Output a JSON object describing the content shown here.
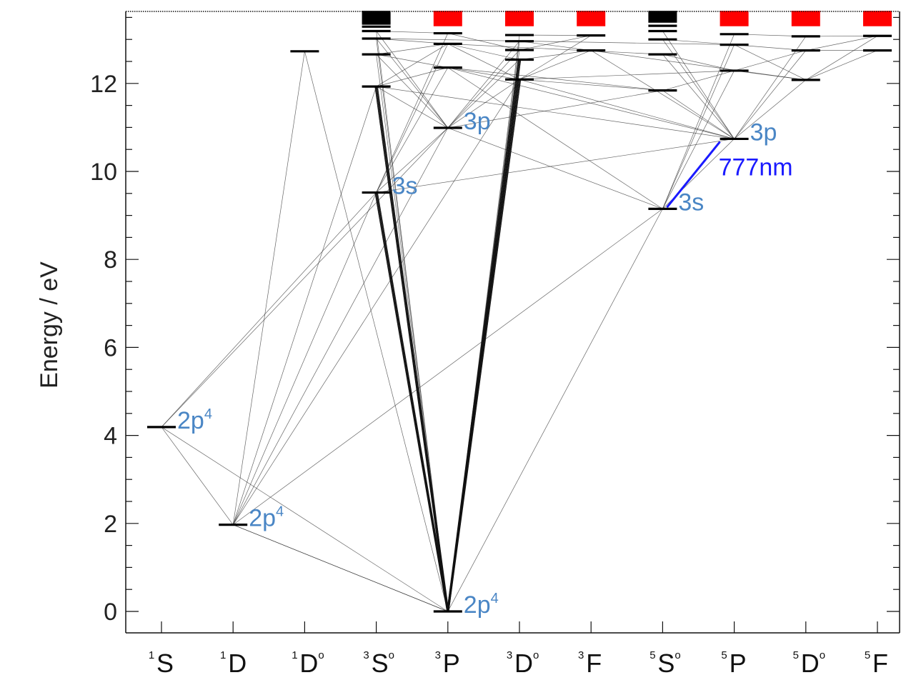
{
  "chart_data": {
    "type": "diagram",
    "subtype": "Grotrian energy-level diagram",
    "ylabel": "Energy / eV",
    "yticks": [
      0,
      2,
      4,
      6,
      8,
      10,
      12
    ],
    "ylim": [
      -0.5,
      13.7
    ],
    "columns": [
      {
        "base": "S",
        "mult": "1",
        "odd": false
      },
      {
        "base": "D",
        "mult": "1",
        "odd": false
      },
      {
        "base": "D",
        "mult": "1",
        "odd": true
      },
      {
        "base": "S",
        "mult": "3",
        "odd": true
      },
      {
        "base": "P",
        "mult": "3",
        "odd": false
      },
      {
        "base": "D",
        "mult": "3",
        "odd": true
      },
      {
        "base": "F",
        "mult": "3",
        "odd": false
      },
      {
        "base": "S",
        "mult": "5",
        "odd": true
      },
      {
        "base": "P",
        "mult": "5",
        "odd": false
      },
      {
        "base": "D",
        "mult": "5",
        "odd": true
      },
      {
        "base": "F",
        "mult": "5",
        "odd": false
      }
    ],
    "levels": [
      {
        "id": "1S",
        "col": 0,
        "energy": 4.19
      },
      {
        "id": "1D",
        "col": 1,
        "energy": 1.97
      },
      {
        "id": "1Do",
        "col": 2,
        "energy": 12.73
      },
      {
        "id": "3So3s",
        "col": 3,
        "energy": 9.52
      },
      {
        "id": "3So_a",
        "col": 3,
        "energy": 11.93
      },
      {
        "id": "3So_b",
        "col": 3,
        "energy": 12.66
      },
      {
        "id": "3So_c",
        "col": 3,
        "energy": 13.02
      },
      {
        "id": "3So_d",
        "col": 3,
        "energy": 13.19
      },
      {
        "id": "3So_e",
        "col": 3,
        "energy": 13.29
      },
      {
        "id": "3So_f",
        "col": 3,
        "energy": 13.36
      },
      {
        "id": "3P0",
        "col": 4,
        "energy": 0.0
      },
      {
        "id": "3P3p",
        "col": 4,
        "energy": 10.99
      },
      {
        "id": "3P_a",
        "col": 4,
        "energy": 12.36
      },
      {
        "id": "3P_b",
        "col": 4,
        "energy": 12.9
      },
      {
        "id": "3P_c",
        "col": 4,
        "energy": 13.14
      },
      {
        "id": "3Do_a",
        "col": 5,
        "energy": 12.09
      },
      {
        "id": "3Do_b",
        "col": 5,
        "energy": 12.54
      },
      {
        "id": "3Do_c",
        "col": 5,
        "energy": 12.76
      },
      {
        "id": "3Do_d",
        "col": 5,
        "energy": 12.96
      },
      {
        "id": "3Do_e",
        "col": 5,
        "energy": 13.1
      },
      {
        "id": "3F_a",
        "col": 6,
        "energy": 12.75
      },
      {
        "id": "3F_b",
        "col": 6,
        "energy": 13.09
      },
      {
        "id": "5So3s",
        "col": 7,
        "energy": 9.15
      },
      {
        "id": "5So_a",
        "col": 7,
        "energy": 11.84
      },
      {
        "id": "5So_b",
        "col": 7,
        "energy": 12.66
      },
      {
        "id": "5So_c",
        "col": 7,
        "energy": 13.0
      },
      {
        "id": "5So_d",
        "col": 7,
        "energy": 13.19
      },
      {
        "id": "5So_e",
        "col": 7,
        "energy": 13.31
      },
      {
        "id": "5P3p",
        "col": 8,
        "energy": 10.74
      },
      {
        "id": "5P_a",
        "col": 8,
        "energy": 12.29
      },
      {
        "id": "5P_b",
        "col": 8,
        "energy": 12.88
      },
      {
        "id": "5P_c",
        "col": 8,
        "energy": 13.12
      },
      {
        "id": "5Do_a",
        "col": 9,
        "energy": 12.08
      },
      {
        "id": "5Do_b",
        "col": 9,
        "energy": 12.75
      },
      {
        "id": "5Do_c",
        "col": 9,
        "energy": 13.07
      },
      {
        "id": "5F_a",
        "col": 10,
        "energy": 12.75
      },
      {
        "id": "5F_b",
        "col": 10,
        "energy": 13.08
      }
    ],
    "continuum_blocks": [
      {
        "col": 4,
        "y0": 13.3,
        "y1": 13.65,
        "color": "#ff0000"
      },
      {
        "col": 5,
        "y0": 13.3,
        "y1": 13.65,
        "color": "#ff0000"
      },
      {
        "col": 6,
        "y0": 13.3,
        "y1": 13.65,
        "color": "#ff0000"
      },
      {
        "col": 8,
        "y0": 13.3,
        "y1": 13.65,
        "color": "#ff0000"
      },
      {
        "col": 9,
        "y0": 13.3,
        "y1": 13.65,
        "color": "#ff0000"
      },
      {
        "col": 10,
        "y0": 13.3,
        "y1": 13.65,
        "color": "#ff0000"
      },
      {
        "col": 3,
        "y0": 13.38,
        "y1": 13.65,
        "color": "#000000"
      },
      {
        "col": 7,
        "y0": 13.38,
        "y1": 13.65,
        "color": "#000000"
      }
    ],
    "transitions": [
      [
        "1S",
        "1D"
      ],
      [
        "1S",
        "3P0"
      ],
      [
        "1S",
        "3So3s"
      ],
      [
        "1S",
        "3P3p"
      ],
      [
        "1D",
        "1Do"
      ],
      [
        "1D",
        "3P0"
      ],
      [
        "1D",
        "3So3s"
      ],
      [
        "1D",
        "3P3p"
      ],
      [
        "1D",
        "3Do_a"
      ],
      [
        "1D",
        "5So3s"
      ],
      [
        "1D",
        "3So_a"
      ],
      [
        "1Do",
        "3P0"
      ],
      [
        "3P0",
        "3So3s"
      ],
      [
        "3P0",
        "3So3s"
      ],
      [
        "3P0",
        "3So_a"
      ],
      [
        "3P0",
        "3So_b"
      ],
      [
        "3P0",
        "3So_c"
      ],
      [
        "3P0",
        "3So_d"
      ],
      [
        "3P0",
        "3Do_a"
      ],
      [
        "3P0",
        "3Do_a"
      ],
      [
        "3P0",
        "3Do_b"
      ],
      [
        "3P0",
        "3Do_c"
      ],
      [
        "3P0",
        "3Do_d"
      ],
      [
        "3P0",
        "3Do_e"
      ],
      [
        "3P0",
        "5So3s"
      ],
      [
        "3P0",
        "1D"
      ],
      [
        "3So3s",
        "3P3p"
      ],
      [
        "3So3s",
        "3P_a"
      ],
      [
        "3So3s",
        "3P_b"
      ],
      [
        "3So3s",
        "5P3p"
      ],
      [
        "3So3s",
        "3P_c"
      ],
      [
        "3P3p",
        "3So_a"
      ],
      [
        "3P3p",
        "3So_b"
      ],
      [
        "3P3p",
        "3So_c"
      ],
      [
        "3P3p",
        "3So_d"
      ],
      [
        "3P3p",
        "3Do_a"
      ],
      [
        "3P3p",
        "3Do_b"
      ],
      [
        "3P3p",
        "3Do_c"
      ],
      [
        "3P3p",
        "3Do_d"
      ],
      [
        "3P3p",
        "5So3s"
      ],
      [
        "3P3p",
        "5So_a"
      ],
      [
        "3So_a",
        "3P_a"
      ],
      [
        "3So_a",
        "3P_b"
      ],
      [
        "3So_b",
        "3P_a"
      ],
      [
        "3So_b",
        "3P_b"
      ],
      [
        "3So_c",
        "3P_b"
      ],
      [
        "3So_d",
        "3P_c"
      ],
      [
        "3Do_a",
        "3P_a"
      ],
      [
        "3Do_a",
        "3P_b"
      ],
      [
        "3Do_a",
        "3F_a"
      ],
      [
        "3Do_a",
        "3F_b"
      ],
      [
        "3Do_b",
        "3P_b"
      ],
      [
        "3Do_b",
        "3F_a"
      ],
      [
        "3Do_c",
        "3F_b"
      ],
      [
        "3Do_c",
        "3P_c"
      ],
      [
        "3Do_d",
        "3F_a"
      ],
      [
        "3Do_e",
        "3F_b"
      ],
      [
        "3Do_a",
        "5P3p"
      ],
      [
        "3Do_a",
        "5So_a"
      ],
      [
        "3F_a",
        "5P3p"
      ],
      [
        "3P_a",
        "5P3p"
      ],
      [
        "3So_a",
        "5P3p"
      ],
      [
        "5So3s",
        "5P3p"
      ],
      [
        "5So3s",
        "5P_a"
      ],
      [
        "5So3s",
        "5P_b"
      ],
      [
        "5So3s",
        "5P_c"
      ],
      [
        "5So3s",
        "3P_a"
      ],
      [
        "5P3p",
        "5So_a"
      ],
      [
        "5P3p",
        "5So_b"
      ],
      [
        "5P3p",
        "5So_c"
      ],
      [
        "5P3p",
        "5So_d"
      ],
      [
        "5P3p",
        "5Do_a"
      ],
      [
        "5P3p",
        "5Do_b"
      ],
      [
        "5P3p",
        "5Do_c"
      ],
      [
        "5P_a",
        "5So_a"
      ],
      [
        "5P_a",
        "5So_b"
      ],
      [
        "5P_a",
        "5Do_a"
      ],
      [
        "5P_a",
        "5Do_b"
      ],
      [
        "5P_b",
        "5So_c"
      ],
      [
        "5P_b",
        "5Do_b"
      ],
      [
        "5P_c",
        "5Do_c"
      ],
      [
        "5Do_a",
        "5F_a"
      ],
      [
        "5Do_a",
        "5F_b"
      ],
      [
        "5Do_b",
        "5F_a"
      ],
      [
        "5Do_b",
        "5F_b"
      ],
      [
        "5Do_c",
        "5F_b"
      ],
      [
        "5Do_a",
        "5P_b"
      ],
      [
        "5So_a",
        "3P_a"
      ],
      [
        "5P_a",
        "3Do_a"
      ],
      [
        "5Do_a",
        "3F_a"
      ],
      [
        "5So_b",
        "3P_b"
      ],
      [
        "5P_b",
        "3So_c"
      ]
    ],
    "heavy_transitions": [
      [
        "3P0",
        "3So3s"
      ],
      [
        "3P0",
        "3Do_a"
      ],
      [
        "3P0",
        "3So_a"
      ],
      [
        "3P0",
        "3Do_b"
      ]
    ],
    "highlight_transition": {
      "from": "5So3s",
      "to": "5P3p",
      "label": "777nm",
      "color": "#1a1aff"
    },
    "level_labels": [
      {
        "level": "1S",
        "text": "2p",
        "sup": "4"
      },
      {
        "level": "1D",
        "text": "2p",
        "sup": "4"
      },
      {
        "level": "3P0",
        "text": "2p",
        "sup": "4"
      },
      {
        "level": "3So3s",
        "text": "3s",
        "sup": ""
      },
      {
        "level": "3P3p",
        "text": "3p",
        "sup": ""
      },
      {
        "level": "5So3s",
        "text": "3s",
        "sup": ""
      },
      {
        "level": "5P3p",
        "text": "3p",
        "sup": ""
      }
    ],
    "label_color": "#4a86c5"
  }
}
